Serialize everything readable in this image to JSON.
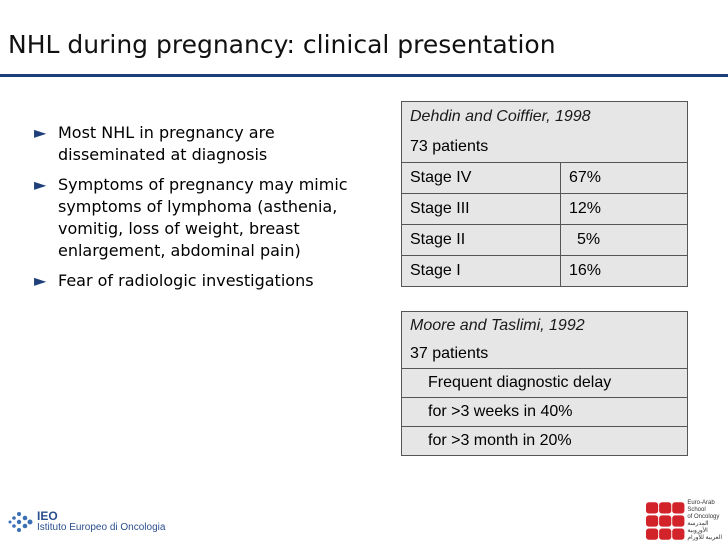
{
  "title": "NHL during pregnancy: clinical presentation",
  "bullets": [
    "Most NHL in pregnancy are disseminated at diagnosis",
    "Symptoms of pregnancy may mimic symptoms of lymphoma (asthenia, vomitig, loss of weight, breast enlargement, abdominal pain)",
    "Fear of radiologic investigations"
  ],
  "table1": {
    "source": "Dehdin and Coiffier, 1998",
    "patients": "73 patients",
    "rows": [
      {
        "stage": "Stage IV",
        "pct": "67%"
      },
      {
        "stage": "Stage III",
        "pct": "12%"
      },
      {
        "stage": "Stage II",
        "pct": "5%"
      },
      {
        "stage": "Stage I",
        "pct": "16%"
      }
    ]
  },
  "table2": {
    "source": "Moore and Taslimi, 1992",
    "patients": "37 patients",
    "lines": [
      "Frequent diagnostic delay",
      "for >3 weeks in 40%",
      "for >3 month in 20%"
    ]
  },
  "logos": {
    "ieo_abbr": "IEO",
    "ieo_name": "Istituto Europeo di Oncologia",
    "eas_line1": "Euro-Arab",
    "eas_line2": "School",
    "eas_line3": "of Oncology",
    "eas_arabic1": "المدرسة الأوروبية",
    "eas_arabic2": "العربية للأورام"
  },
  "colors": {
    "accent": "#1f3f7a",
    "table_bg": "#e6e6e6",
    "eas_red": "#d2232a"
  }
}
